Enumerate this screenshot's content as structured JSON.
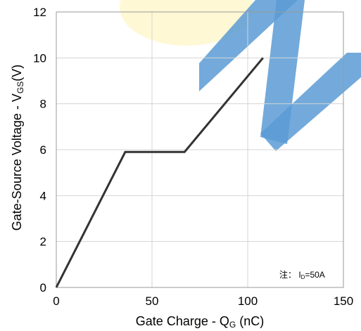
{
  "chart_data": {
    "type": "line",
    "xlabel": {
      "main": "Gate Charge - Q",
      "sub": "G",
      "suffix": " (nC)"
    },
    "ylabel": {
      "main": "Gate-Source Voltage - V",
      "sub": "GS",
      "suffix": "(V)"
    },
    "xlim": [
      0,
      150
    ],
    "ylim": [
      0,
      12
    ],
    "x_ticks": [
      0,
      50,
      100,
      150
    ],
    "y_ticks": [
      0,
      2,
      4,
      6,
      8,
      10,
      12
    ],
    "x_tick_labels": [
      "0",
      "50",
      "100",
      "150"
    ],
    "y_tick_labels": [
      "0",
      "2",
      "4",
      "6",
      "8",
      "10",
      "12"
    ],
    "grid": true,
    "series": [
      {
        "color": "#333333",
        "x": [
          0,
          36,
          67,
          108
        ],
        "y": [
          0,
          5.9,
          5.9,
          10
        ]
      }
    ],
    "annotation": {
      "prefix": "注：  I",
      "sub": "D",
      "suffix": "=50A"
    }
  },
  "colors": {
    "line": "#333333",
    "grid": "#d4d4d4",
    "frame": "#9a9a9a",
    "watermark_blue": "#5b9bd5",
    "watermark_yellow": "#fff3b0"
  }
}
